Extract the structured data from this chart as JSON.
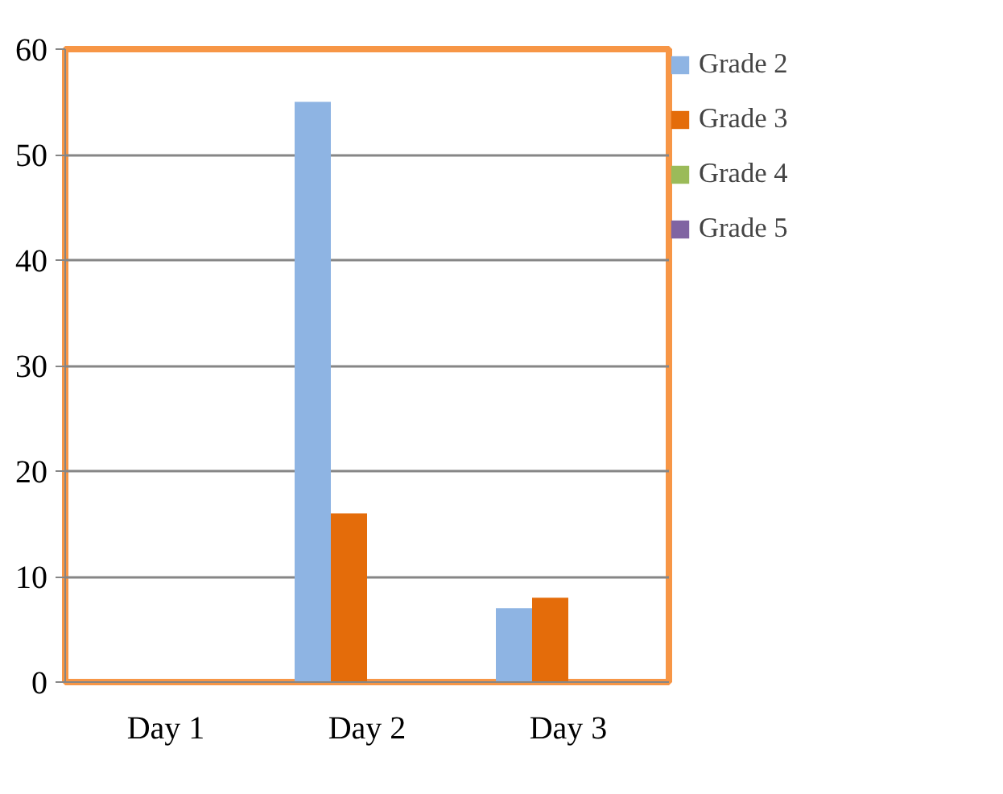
{
  "chart_data": {
    "type": "bar",
    "categories": [
      "Day 1",
      "Day 2",
      "Day 3"
    ],
    "series": [
      {
        "name": "Grade 2",
        "color": "#8eb4e3",
        "values": [
          0,
          55,
          7
        ]
      },
      {
        "name": "Grade 3",
        "color": "#e46c0a",
        "values": [
          0,
          16,
          8
        ]
      },
      {
        "name": "Grade 4",
        "color": "#9bbb59",
        "values": [
          0,
          0,
          0
        ]
      },
      {
        "name": "Grade 5",
        "color": "#8064a2",
        "values": [
          0,
          0,
          0
        ]
      }
    ],
    "ylim": [
      0,
      60
    ],
    "yticks": [
      0,
      10,
      20,
      30,
      40,
      50,
      60
    ],
    "grid": "y",
    "legend": "right"
  }
}
